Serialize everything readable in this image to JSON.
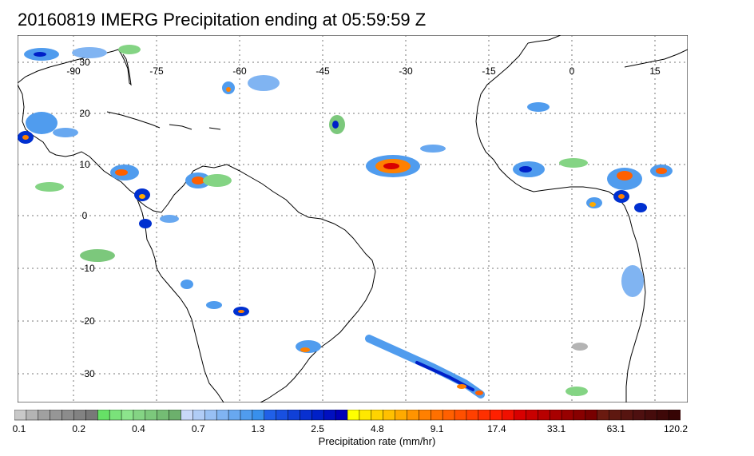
{
  "title": "20160819 IMERG Precipitation ending at 05:59:59 Z",
  "lon_labels": [
    "-90",
    "-75",
    "-60",
    "-45",
    "-30",
    "-15",
    "0",
    "15"
  ],
  "lat_labels": [
    "30",
    "20",
    "10",
    "0",
    "-10",
    "-20",
    "-30"
  ],
  "colorbar": {
    "title": "Precipitation rate (mm/hr)",
    "tick_labels": [
      "0.1",
      "0.2",
      "0.4",
      "0.7",
      "1.3",
      "2.5",
      "4.8",
      "9.1",
      "17.4",
      "33.1",
      "63.1",
      "120.2"
    ],
    "colors": [
      "#c8c8c8",
      "#b4b4b4",
      "#a0a0a0",
      "#969696",
      "#8c8c8c",
      "#828282",
      "#787878",
      "#66e066",
      "#7ae27a",
      "#8ce48c",
      "#84d484",
      "#7cc87c",
      "#74bc74",
      "#6cb06c",
      "#c8d8f8",
      "#b0ccf6",
      "#98c0f4",
      "#80b4f2",
      "#68a8f0",
      "#509cee",
      "#3890ec",
      "#2060e8",
      "#1850e0",
      "#1040d8",
      "#0830d0",
      "#0020c8",
      "#0010c0",
      "#0000b8",
      "#ffff00",
      "#ffe800",
      "#ffd400",
      "#ffc000",
      "#ffaa00",
      "#ff9400",
      "#ff8000",
      "#ff7000",
      "#ff6000",
      "#ff5000",
      "#ff4000",
      "#ff3000",
      "#ff2000",
      "#f01000",
      "#d80000",
      "#c80000",
      "#b80000",
      "#a80000",
      "#980000",
      "#880000",
      "#780000",
      "#6a1a10",
      "#5e1810",
      "#561410",
      "#4e1010",
      "#460c0c",
      "#3e0808",
      "#360404"
    ]
  },
  "colors": {
    "coastline": "#000000",
    "grid": "#777777",
    "background": "#ffffff"
  }
}
